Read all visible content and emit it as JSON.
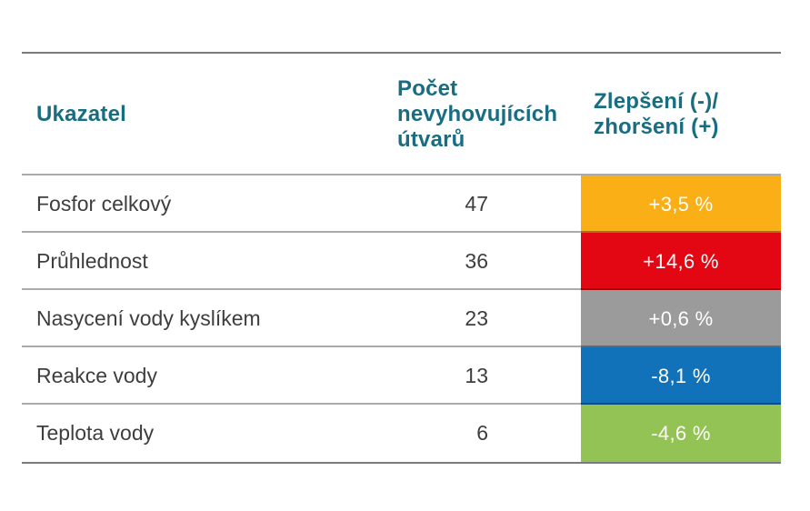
{
  "chart_data": {
    "type": "table",
    "title": "",
    "columns": [
      "Ukazatel",
      "Počet nevyhovujících útvarů",
      "Zlepšení (-)/ zhoršení (+)"
    ],
    "rows": [
      [
        "Fosfor celkový",
        47,
        "+3,5 %"
      ],
      [
        "Průhlednost",
        36,
        "+14,6 %"
      ],
      [
        "Nasycení vody kyslíkem",
        23,
        "+0,6 %"
      ],
      [
        "Reakce vody",
        13,
        "-8,1 %"
      ],
      [
        "Teplota vody",
        6,
        "-4,6 %"
      ]
    ],
    "change_cell_colors": [
      "#f9af15",
      "#e30613",
      "#9c9b9b",
      "#1272b9",
      "#93c355"
    ]
  },
  "table": {
    "columns": [
      {
        "label": "Ukazatel"
      },
      {
        "label": "Počet\nnevyhovujících\nútvarů"
      },
      {
        "label": "Zlepšení (-)/\nzhoršení (+)"
      }
    ],
    "rows": [
      {
        "indicator": "Fosfor celkový",
        "count": "47",
        "change": "+3,5 %",
        "color": "#f9af15"
      },
      {
        "indicator": "Průhlednost",
        "count": "36",
        "change": "+14,6 %",
        "color": "#e30613"
      },
      {
        "indicator": "Nasycení vody kyslíkem",
        "count": "23",
        "change": "+0,6 %",
        "color": "#9c9b9b"
      },
      {
        "indicator": "Reakce vody",
        "count": "13",
        "change": "-8,1 %",
        "color": "#1272b9"
      },
      {
        "indicator": "Teplota vody",
        "count": "6",
        "change": "-4,6 %",
        "color": "#93c355"
      }
    ],
    "colors": {
      "header_text": "#186d80",
      "body_text": "#3e3e3d",
      "rule": "#7b7b7b"
    }
  }
}
